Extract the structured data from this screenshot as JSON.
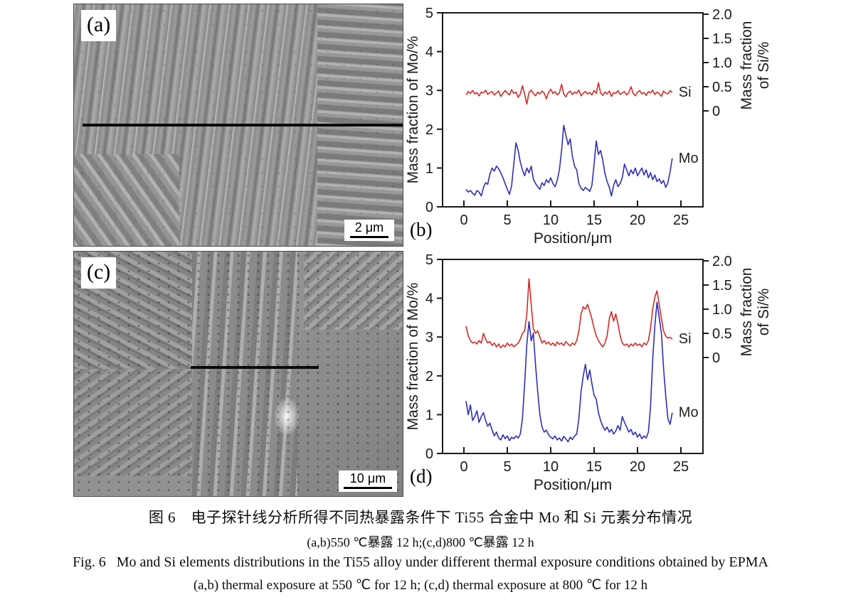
{
  "figure": {
    "caption_cn_line1": "图 6　电子探针线分析所得不同热暴露条件下 Ti55 合金中 Mo 和 Si 元素分布情况",
    "caption_cn_line2": "(a,b)550 ℃暴露 12 h;(c,d)800 ℃暴露 12 h",
    "caption_en_line1": "Fig. 6   Mo and Si elements distributions in the Ti55 alloy under different thermal exposure conditions obtained by EPMA",
    "caption_en_line2": "(a,b) thermal exposure at 550 ℃ for 12 h; (c,d) thermal exposure at 800 ℃ for 12 h"
  },
  "micrographs": [
    {
      "label": "(a)",
      "scale_text": "2 μm"
    },
    {
      "label": "(c)",
      "scale_text": "10 μm"
    }
  ],
  "colors": {
    "si_line": "#d32b26",
    "mo_line": "#2e2eb8",
    "axis": "#1a1a1a",
    "text": "#1a1a1a"
  },
  "chart_data": [
    {
      "type": "line",
      "panel_label": "(b)",
      "xlabel": "Position/μm",
      "ylabel_left": "Mass fraction of Mo/%",
      "ylabel_right_lines": [
        "Mass fraction",
        "of Si/%"
      ],
      "x_ticks": [
        0,
        5,
        10,
        15,
        20,
        25
      ],
      "x_range": [
        0,
        25
      ],
      "left_axis": {
        "min": 0,
        "max": 5,
        "ticks": [
          0,
          1,
          2,
          3,
          4,
          5
        ]
      },
      "right_axis": {
        "min": 0,
        "max": 2,
        "ticks": [
          0,
          0.5,
          1,
          1.5,
          2
        ],
        "tick_labels": [
          "0",
          "0.5",
          "1.0",
          "1.5",
          "2.0"
        ]
      },
      "series": [
        {
          "name": "Si",
          "axis": "right",
          "color_key": "si_line",
          "label": "Si",
          "x0": 0.25,
          "dx": 0.25,
          "values": [
            0.33,
            0.4,
            0.36,
            0.42,
            0.35,
            0.38,
            0.31,
            0.39,
            0.37,
            0.43,
            0.34,
            0.38,
            0.4,
            0.33,
            0.37,
            0.41,
            0.3,
            0.36,
            0.42,
            0.37,
            0.33,
            0.44,
            0.36,
            0.39,
            0.28,
            0.35,
            0.52,
            0.34,
            0.14,
            0.38,
            0.43,
            0.36,
            0.31,
            0.39,
            0.35,
            0.41,
            0.37,
            0.25,
            0.38,
            0.45,
            0.36,
            0.4,
            0.33,
            0.37,
            0.55,
            0.35,
            0.29,
            0.38,
            0.41,
            0.34,
            0.39,
            0.36,
            0.43,
            0.31,
            0.37,
            0.4,
            0.35,
            0.38,
            0.33,
            0.42,
            0.36,
            0.58,
            0.37,
            0.32,
            0.39,
            0.35,
            0.41,
            0.3,
            0.38,
            0.36,
            0.42,
            0.34,
            0.37,
            0.4,
            0.33,
            0.38,
            0.5,
            0.36,
            0.31,
            0.39,
            0.42,
            0.35,
            0.38,
            0.32,
            0.4,
            0.37,
            0.43,
            0.34,
            0.39,
            0.36,
            0.3,
            0.41,
            0.37,
            0.35,
            0.42,
            0.38
          ]
        },
        {
          "name": "Mo",
          "axis": "left",
          "color_key": "mo_line",
          "label": "Mo",
          "x0": 0.25,
          "dx": 0.25,
          "values": [
            0.45,
            0.38,
            0.42,
            0.35,
            0.3,
            0.42,
            0.38,
            0.28,
            0.5,
            0.62,
            0.58,
            0.85,
            1.0,
            0.92,
            1.05,
            0.98,
            0.88,
            0.75,
            0.6,
            0.45,
            0.32,
            0.55,
            1.1,
            1.65,
            1.45,
            1.15,
            0.95,
            0.8,
            1.0,
            0.88,
            1.05,
            0.72,
            0.6,
            0.52,
            0.45,
            0.62,
            0.55,
            0.7,
            0.62,
            0.75,
            0.6,
            0.52,
            0.68,
            0.95,
            1.45,
            2.1,
            1.85,
            1.6,
            1.75,
            1.3,
            1.05,
            0.95,
            0.6,
            0.48,
            0.42,
            0.5,
            0.45,
            0.4,
            0.55,
            1.1,
            1.7,
            1.35,
            1.45,
            1.2,
            0.85,
            0.65,
            0.5,
            0.28,
            0.55,
            0.7,
            0.52,
            0.6,
            0.75,
            1.1,
            0.95,
            0.8,
            0.95,
            0.85,
            1.0,
            0.8,
            0.9,
            1.0,
            0.82,
            0.95,
            0.75,
            0.88,
            0.7,
            0.82,
            0.65,
            0.72,
            0.6,
            0.68,
            0.5,
            0.62,
            0.9,
            1.25
          ]
        }
      ]
    },
    {
      "type": "line",
      "panel_label": "(d)",
      "xlabel": "Position/μm",
      "ylabel_left": "Mass fraction of Mo/%",
      "ylabel_right_lines": [
        "Mass fraction",
        "of Si/%"
      ],
      "x_ticks": [
        0,
        5,
        10,
        15,
        20,
        25
      ],
      "x_range": [
        0,
        25
      ],
      "left_axis": {
        "min": 0,
        "max": 5,
        "ticks": [
          0,
          1,
          2,
          3,
          4,
          5
        ]
      },
      "right_axis": {
        "min": 0,
        "max": 2,
        "ticks": [
          0,
          0.5,
          1,
          1.5,
          2
        ],
        "tick_labels": [
          "0",
          "0.5",
          "1.0",
          "1.5",
          "2.0"
        ]
      },
      "series": [
        {
          "name": "Si",
          "axis": "right",
          "color_key": "si_line",
          "label": "Si",
          "x0": 0.25,
          "dx": 0.25,
          "values": [
            0.65,
            0.45,
            0.35,
            0.3,
            0.32,
            0.28,
            0.35,
            0.3,
            0.5,
            0.38,
            0.3,
            0.33,
            0.25,
            0.3,
            0.22,
            0.28,
            0.2,
            0.26,
            0.22,
            0.3,
            0.24,
            0.28,
            0.22,
            0.26,
            0.3,
            0.38,
            0.5,
            0.55,
            0.9,
            1.63,
            1.1,
            0.6,
            0.5,
            0.55,
            0.42,
            0.3,
            0.35,
            0.28,
            0.32,
            0.26,
            0.3,
            0.24,
            0.32,
            0.27,
            0.3,
            0.25,
            0.33,
            0.28,
            0.24,
            0.3,
            0.26,
            0.35,
            0.55,
            0.9,
            1.05,
            1.0,
            1.1,
            0.95,
            0.8,
            0.6,
            0.45,
            0.35,
            0.28,
            0.22,
            0.3,
            0.45,
            0.8,
            0.95,
            0.75,
            0.9,
            0.7,
            0.45,
            0.3,
            0.25,
            0.28,
            0.22,
            0.28,
            0.24,
            0.3,
            0.25,
            0.28,
            0.22,
            0.3,
            0.26,
            0.35,
            0.6,
            1.0,
            1.25,
            1.38,
            1.1,
            0.8,
            0.55,
            0.45,
            0.4,
            0.42,
            0.38
          ]
        },
        {
          "name": "Mo",
          "axis": "left",
          "color_key": "mo_line",
          "label": "Mo",
          "x0": 0.25,
          "dx": 0.25,
          "values": [
            1.35,
            1.0,
            1.25,
            0.85,
            0.95,
            1.1,
            0.8,
            0.95,
            1.05,
            0.85,
            0.7,
            0.78,
            0.6,
            0.45,
            0.55,
            0.4,
            0.35,
            0.48,
            0.38,
            0.45,
            0.33,
            0.42,
            0.38,
            0.45,
            0.4,
            0.5,
            0.9,
            1.8,
            2.8,
            3.4,
            2.9,
            3.1,
            2.3,
            1.6,
            1.0,
            0.68,
            0.55,
            0.6,
            0.48,
            0.42,
            0.38,
            0.45,
            0.35,
            0.4,
            0.32,
            0.44,
            0.38,
            0.3,
            0.42,
            0.36,
            0.45,
            0.5,
            0.9,
            1.6,
            2.0,
            2.3,
            1.9,
            2.15,
            1.8,
            1.5,
            1.4,
            1.05,
            0.85,
            0.7,
            0.6,
            0.68,
            0.55,
            0.62,
            0.5,
            0.58,
            0.72,
            0.6,
            0.95,
            0.8,
            0.68,
            0.55,
            0.62,
            0.48,
            0.55,
            0.42,
            0.5,
            0.38,
            0.45,
            0.4,
            0.55,
            1.2,
            2.4,
            3.3,
            3.9,
            3.5,
            3.1,
            2.2,
            1.5,
            0.9,
            0.75,
            1.05
          ]
        }
      ]
    }
  ]
}
